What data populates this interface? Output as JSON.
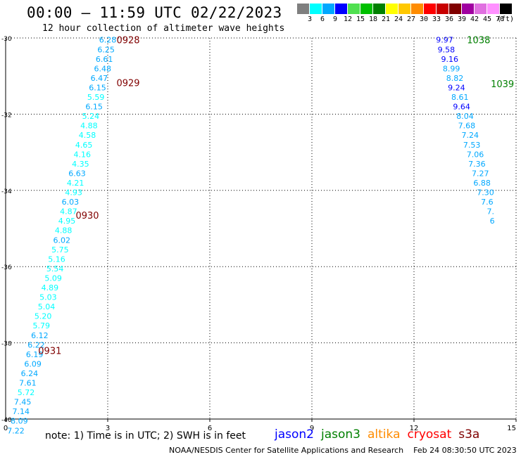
{
  "header": {
    "title": "00:00 – 11:59 UTC 02/22/2023",
    "subtitle": "12 hour collection of altimeter wave heights"
  },
  "legend": {
    "unit_label": "(ft)",
    "bins": [
      {
        "color": "#7f7f7f",
        "label": "3"
      },
      {
        "color": "#00ffff",
        "label": "6"
      },
      {
        "color": "#00a8ff",
        "label": "9"
      },
      {
        "color": "#0000ff",
        "label": "12"
      },
      {
        "color": "#50e050",
        "label": "15"
      },
      {
        "color": "#00c000",
        "label": "18"
      },
      {
        "color": "#008000",
        "label": "21"
      },
      {
        "color": "#ffff00",
        "label": "24"
      },
      {
        "color": "#ffc800",
        "label": "27"
      },
      {
        "color": "#ff8c00",
        "label": "30"
      },
      {
        "color": "#ff0000",
        "label": "33"
      },
      {
        "color": "#c80000",
        "label": "36"
      },
      {
        "color": "#800000",
        "label": "39"
      },
      {
        "color": "#a000a0",
        "label": "42"
      },
      {
        "color": "#e070e0",
        "label": "45"
      },
      {
        "color": "#ff90ff",
        "label": "70"
      },
      {
        "color": "#000000",
        "label": ""
      }
    ]
  },
  "note": "note: 1) Time is in UTC; 2) SWH is in feet",
  "missions": [
    {
      "name": "jason2",
      "color": "#0000ff"
    },
    {
      "name": "jason3",
      "color": "#008000"
    },
    {
      "name": "altika",
      "color": "#ff8c00"
    },
    {
      "name": "cryosat",
      "color": "#ff0000"
    },
    {
      "name": "s3a",
      "color": "#800000"
    }
  ],
  "footer": "NOAA/NESDIS Center for Satellite Applications and Research    Feb 24 08:30:50 UTC 2023",
  "chart_data": {
    "type": "scatter",
    "x_ticks": [
      "0",
      "3",
      "6",
      "9",
      "12",
      "15"
    ],
    "xlim": [
      0,
      15
    ],
    "y_ticks": [
      "-30",
      "-32",
      "-34",
      "-36",
      "-38",
      "-40"
    ],
    "ylim": [
      -40,
      -30
    ],
    "grid": true,
    "track_labels": [
      {
        "x": 3.6,
        "y": -30.05,
        "text": "0928",
        "color": "#800000"
      },
      {
        "x": 3.6,
        "y": -31.17,
        "text": "0929",
        "color": "#800000"
      },
      {
        "x": 2.4,
        "y": -34.65,
        "text": "0930",
        "color": "#800000"
      },
      {
        "x": 1.3,
        "y": -38.2,
        "text": "0931",
        "color": "#800000"
      },
      {
        "x": 13.9,
        "y": -30.05,
        "text": "1038",
        "color": "#008000"
      },
      {
        "x": 14.6,
        "y": -31.2,
        "text": "1039",
        "color": "#008000"
      }
    ],
    "series": [
      {
        "name": "s3a",
        "points": [
          {
            "x": 3.0,
            "y": -30.05,
            "v": "6.28",
            "c": "#00a8ff"
          },
          {
            "x": 2.95,
            "y": -30.3,
            "v": "6.25",
            "c": "#00a8ff"
          },
          {
            "x": 2.9,
            "y": -30.55,
            "v": "6.61",
            "c": "#00a8ff"
          },
          {
            "x": 2.85,
            "y": -30.8,
            "v": "6.48",
            "c": "#00a8ff"
          },
          {
            "x": 2.75,
            "y": -31.05,
            "v": "6.47",
            "c": "#00a8ff"
          },
          {
            "x": 2.7,
            "y": -31.3,
            "v": "6.15",
            "c": "#00a8ff"
          },
          {
            "x": 2.65,
            "y": -31.55,
            "v": "5.59",
            "c": "#00ffff"
          },
          {
            "x": 2.6,
            "y": -31.8,
            "v": "6.15",
            "c": "#00a8ff"
          },
          {
            "x": 2.5,
            "y": -32.05,
            "v": "5.24",
            "c": "#00ffff"
          },
          {
            "x": 2.45,
            "y": -32.3,
            "v": "4.88",
            "c": "#00ffff"
          },
          {
            "x": 2.4,
            "y": -32.55,
            "v": "4.58",
            "c": "#00ffff"
          },
          {
            "x": 2.3,
            "y": -32.8,
            "v": "4.65",
            "c": "#00ffff"
          },
          {
            "x": 2.25,
            "y": -33.05,
            "v": "4.16",
            "c": "#00ffff"
          },
          {
            "x": 2.2,
            "y": -33.3,
            "v": "4.35",
            "c": "#00ffff"
          },
          {
            "x": 2.1,
            "y": -33.55,
            "v": "6.63",
            "c": "#00a8ff"
          },
          {
            "x": 2.05,
            "y": -33.8,
            "v": "4.21",
            "c": "#00ffff"
          },
          {
            "x": 2.0,
            "y": -34.05,
            "v": "4.93",
            "c": "#00ffff"
          },
          {
            "x": 1.9,
            "y": -34.3,
            "v": "6.03",
            "c": "#00a8ff"
          },
          {
            "x": 1.85,
            "y": -34.55,
            "v": "4.87",
            "c": "#00ffff"
          },
          {
            "x": 1.8,
            "y": -34.8,
            "v": "4.95",
            "c": "#00ffff"
          },
          {
            "x": 1.7,
            "y": -35.05,
            "v": "4.88",
            "c": "#00ffff"
          },
          {
            "x": 1.65,
            "y": -35.3,
            "v": "6.02",
            "c": "#00a8ff"
          },
          {
            "x": 1.6,
            "y": -35.55,
            "v": "5.75",
            "c": "#00ffff"
          },
          {
            "x": 1.5,
            "y": -35.8,
            "v": "5.16",
            "c": "#00ffff"
          },
          {
            "x": 1.45,
            "y": -36.05,
            "v": "5.54",
            "c": "#00ffff"
          },
          {
            "x": 1.4,
            "y": -36.3,
            "v": "5.09",
            "c": "#00ffff"
          },
          {
            "x": 1.3,
            "y": -36.55,
            "v": "4.89",
            "c": "#00ffff"
          },
          {
            "x": 1.25,
            "y": -36.8,
            "v": "5.03",
            "c": "#00ffff"
          },
          {
            "x": 1.2,
            "y": -37.05,
            "v": "5.04",
            "c": "#00ffff"
          },
          {
            "x": 1.1,
            "y": -37.3,
            "v": "5.20",
            "c": "#00ffff"
          },
          {
            "x": 1.05,
            "y": -37.55,
            "v": "5.79",
            "c": "#00ffff"
          },
          {
            "x": 1.0,
            "y": -37.8,
            "v": "6.12",
            "c": "#00a8ff"
          },
          {
            "x": 0.9,
            "y": -38.05,
            "v": "6.22",
            "c": "#00a8ff"
          },
          {
            "x": 0.85,
            "y": -38.3,
            "v": "6.19",
            "c": "#00a8ff"
          },
          {
            "x": 0.8,
            "y": -38.55,
            "v": "6.09",
            "c": "#00a8ff"
          },
          {
            "x": 0.7,
            "y": -38.8,
            "v": "6.24",
            "c": "#00a8ff"
          },
          {
            "x": 0.65,
            "y": -39.05,
            "v": "7.61",
            "c": "#00a8ff"
          },
          {
            "x": 0.6,
            "y": -39.3,
            "v": "5.72",
            "c": "#00ffff"
          },
          {
            "x": 0.5,
            "y": -39.55,
            "v": "7.45",
            "c": "#00a8ff"
          },
          {
            "x": 0.45,
            "y": -39.8,
            "v": "7.14",
            "c": "#00a8ff"
          },
          {
            "x": 0.4,
            "y": -40.05,
            "v": "8.09",
            "c": "#00a8ff"
          },
          {
            "x": 0.3,
            "y": -40.3,
            "v": "7.22",
            "c": "#00a8ff"
          }
        ]
      },
      {
        "name": "jason3",
        "points": [
          {
            "x": 12.9,
            "y": -30.05,
            "v": "9.97",
            "c": "#0000ff"
          },
          {
            "x": 12.95,
            "y": -30.3,
            "v": "9.58",
            "c": "#0000ff"
          },
          {
            "x": 13.05,
            "y": -30.55,
            "v": "9.16",
            "c": "#0000ff"
          },
          {
            "x": 13.1,
            "y": -30.8,
            "v": "8.99",
            "c": "#00a8ff"
          },
          {
            "x": 13.2,
            "y": -31.05,
            "v": "8.82",
            "c": "#00a8ff"
          },
          {
            "x": 13.25,
            "y": -31.3,
            "v": "9.24",
            "c": "#0000ff"
          },
          {
            "x": 13.35,
            "y": -31.55,
            "v": "8.61",
            "c": "#00a8ff"
          },
          {
            "x": 13.4,
            "y": -31.8,
            "v": "9.64",
            "c": "#0000ff"
          },
          {
            "x": 13.5,
            "y": -32.05,
            "v": "8.04",
            "c": "#00a8ff"
          },
          {
            "x": 13.55,
            "y": -32.3,
            "v": "7.68",
            "c": "#00a8ff"
          },
          {
            "x": 13.65,
            "y": -32.55,
            "v": "7.24",
            "c": "#00a8ff"
          },
          {
            "x": 13.7,
            "y": -32.8,
            "v": "7.53",
            "c": "#00a8ff"
          },
          {
            "x": 13.8,
            "y": -33.05,
            "v": "7.06",
            "c": "#00a8ff"
          },
          {
            "x": 13.85,
            "y": -33.3,
            "v": "7.36",
            "c": "#00a8ff"
          },
          {
            "x": 13.95,
            "y": -33.55,
            "v": "7.27",
            "c": "#00a8ff"
          },
          {
            "x": 14.0,
            "y": -33.8,
            "v": "6.88",
            "c": "#00a8ff"
          },
          {
            "x": 14.1,
            "y": -34.05,
            "v": "7.30",
            "c": "#00a8ff"
          },
          {
            "x": 14.15,
            "y": -34.3,
            "v": "7.6",
            "c": "#00a8ff"
          },
          {
            "x": 14.25,
            "y": -34.55,
            "v": "7.",
            "c": "#00a8ff"
          },
          {
            "x": 14.3,
            "y": -34.8,
            "v": "6",
            "c": "#00a8ff"
          }
        ]
      }
    ]
  }
}
